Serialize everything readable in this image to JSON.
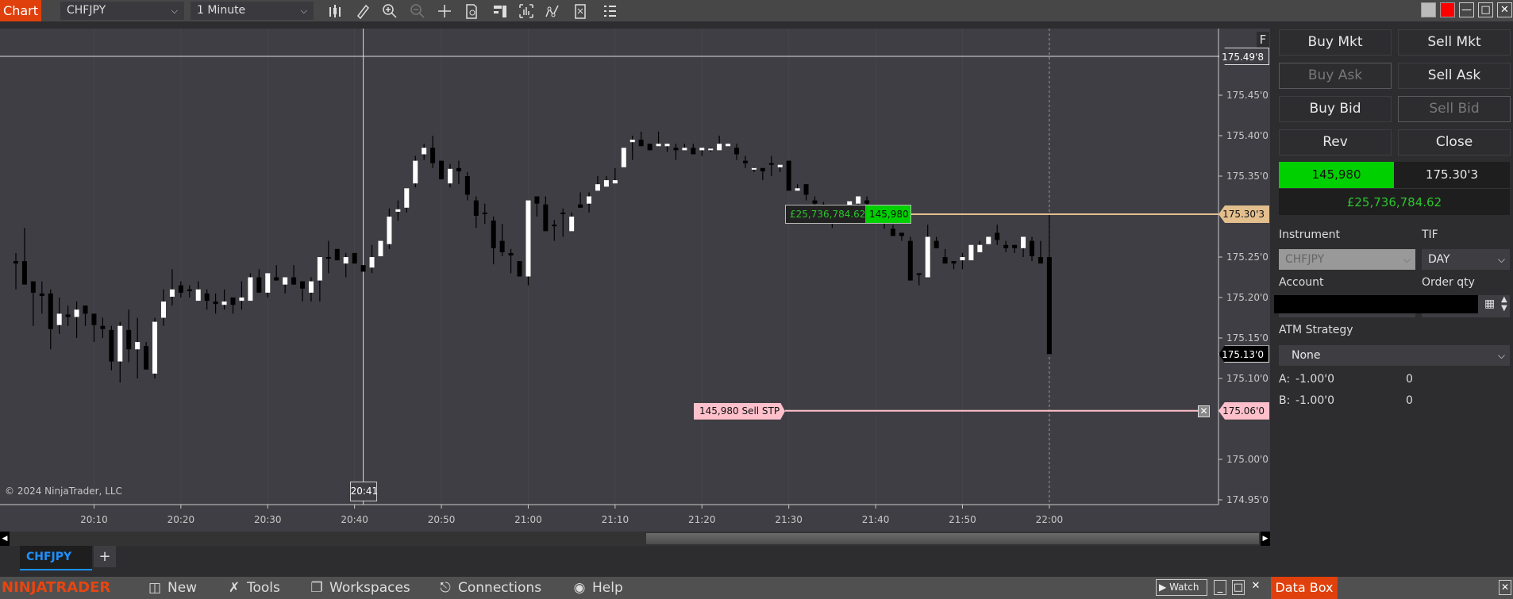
{
  "toolbar": {
    "tab_label": "Chart",
    "instrument": "CHFJPY",
    "interval": "1 Minute",
    "icons": [
      "bar-type-icon",
      "drawing-tool-icon",
      "zoom-in-icon",
      "zoom-out-icon",
      "crosshair-icon",
      "data-series-icon",
      "properties-icon",
      "chart-trader-icon",
      "indicators-icon",
      "strategies-icon",
      "list-icon"
    ],
    "window_buttons": [
      "gray-color-icon",
      "red-color-icon",
      "minimize-icon",
      "maximize-icon",
      "close-icon"
    ]
  },
  "chart": {
    "copyright": "© 2024 NinjaTrader, LLC",
    "f_label": "F",
    "crosshair_price": 175.498,
    "crosshair_price_label": "175.49'8",
    "crosshair_time_label": "20:41",
    "position_price": 175.303,
    "position_price_label": "175.30'3",
    "last_price": 175.13,
    "last_price_label": "175.13'0",
    "stop_price": 175.06,
    "stop_price_label": "175.06'0",
    "position_pnl": "£25,736,784.62",
    "position_qty": "145,980",
    "stop_order_label": "145,980  Sell STP",
    "stop_cancel": "✕",
    "colors": {
      "position_line": "#e3bf8e",
      "stop_line": "#ffc0cb",
      "last_flag": "#000000",
      "up_candle": "#ffffff",
      "down_candle": "#000000",
      "pnl_text": "#2ec42e",
      "qty_bg": "#00d000"
    }
  },
  "chart_data": {
    "type": "candlestick",
    "instrument": "CHFJPY",
    "interval": "1 Minute",
    "x_ticks": [
      "20:10",
      "20:20",
      "20:30",
      "20:40",
      "20:50",
      "21:00",
      "21:10",
      "21:20",
      "21:30",
      "21:40",
      "21:50",
      "22:00"
    ],
    "y_ticks": [
      {
        "value": 175.45,
        "label": "175.45'0"
      },
      {
        "value": 175.4,
        "label": "175.40'0"
      },
      {
        "value": 175.35,
        "label": "175.35'0"
      },
      {
        "value": 175.25,
        "label": "175.25'0"
      },
      {
        "value": 175.2,
        "label": "175.20'0"
      },
      {
        "value": 175.15,
        "label": "175.15'0"
      },
      {
        "value": 175.1,
        "label": "175.10'0"
      },
      {
        "value": 175.0,
        "label": "175.00'0"
      },
      {
        "value": 174.95,
        "label": "174.95'0"
      }
    ],
    "ylim": [
      174.94,
      175.52
    ],
    "first_bar_time": "20:01",
    "last_bar_time": "22:00",
    "ohlc_columns": [
      "open",
      "high",
      "low",
      "close"
    ],
    "candles": [
      [
        175.245,
        175.255,
        175.21,
        175.242
      ],
      [
        175.245,
        175.286,
        175.216,
        175.216
      ],
      [
        175.22,
        175.22,
        175.165,
        175.206
      ],
      [
        175.205,
        175.22,
        175.18,
        175.202
      ],
      [
        175.205,
        175.21,
        175.136,
        175.161
      ],
      [
        175.166,
        175.2,
        175.155,
        175.18
      ],
      [
        175.179,
        175.19,
        175.165,
        175.176
      ],
      [
        175.176,
        175.195,
        175.15,
        175.185
      ],
      [
        175.19,
        175.19,
        175.165,
        175.18
      ],
      [
        175.18,
        175.18,
        175.145,
        175.166
      ],
      [
        175.165,
        175.175,
        175.15,
        175.161
      ],
      [
        175.16,
        175.165,
        175.11,
        175.121
      ],
      [
        175.121,
        175.17,
        175.095,
        175.165
      ],
      [
        175.16,
        175.185,
        175.12,
        175.136
      ],
      [
        175.136,
        175.175,
        175.1,
        175.145
      ],
      [
        175.14,
        175.145,
        175.111,
        175.111
      ],
      [
        175.106,
        175.175,
        175.1,
        175.17
      ],
      [
        175.175,
        175.21,
        175.165,
        175.195
      ],
      [
        175.201,
        175.235,
        175.19,
        175.21
      ],
      [
        175.215,
        175.22,
        175.2,
        175.206
      ],
      [
        175.21,
        175.215,
        175.2,
        175.209
      ],
      [
        175.196,
        175.22,
        175.196,
        175.21
      ],
      [
        175.205,
        175.21,
        175.185,
        175.196
      ],
      [
        175.195,
        175.205,
        175.18,
        175.192
      ],
      [
        175.191,
        175.21,
        175.185,
        175.195
      ],
      [
        175.2,
        175.2,
        175.18,
        175.191
      ],
      [
        175.196,
        175.22,
        175.185,
        175.2
      ],
      [
        175.196,
        175.23,
        175.196,
        175.225
      ],
      [
        175.225,
        175.235,
        175.206,
        175.206
      ],
      [
        175.206,
        175.23,
        175.2,
        175.23
      ],
      [
        175.225,
        175.24,
        175.221,
        175.221
      ],
      [
        175.216,
        175.225,
        175.205,
        175.225
      ],
      [
        175.225,
        175.24,
        175.216,
        175.216
      ],
      [
        175.22,
        175.22,
        175.195,
        175.211
      ],
      [
        175.206,
        175.225,
        175.195,
        175.22
      ],
      [
        175.221,
        175.25,
        175.195,
        175.25
      ],
      [
        175.25,
        175.27,
        175.23,
        175.249
      ],
      [
        175.26,
        175.26,
        175.246,
        175.246
      ],
      [
        175.242,
        175.255,
        175.225,
        175.25
      ],
      [
        175.255,
        175.255,
        175.242,
        175.242
      ],
      [
        175.24,
        175.24,
        175.232,
        175.232
      ],
      [
        175.237,
        175.265,
        175.23,
        175.25
      ],
      [
        175.251,
        175.27,
        175.251,
        175.27
      ],
      [
        175.266,
        175.31,
        175.26,
        175.3
      ],
      [
        175.306,
        175.32,
        175.295,
        175.309
      ],
      [
        175.311,
        175.335,
        175.305,
        175.335
      ],
      [
        175.341,
        175.375,
        175.336,
        175.369
      ],
      [
        175.377,
        175.39,
        175.37,
        175.385
      ],
      [
        175.385,
        175.4,
        175.36,
        175.366
      ],
      [
        175.369,
        175.369,
        175.346,
        175.346
      ],
      [
        175.341,
        175.365,
        175.336,
        175.359
      ],
      [
        175.36,
        175.369,
        175.34,
        175.356
      ],
      [
        175.35,
        175.355,
        175.32,
        175.327
      ],
      [
        175.32,
        175.325,
        175.286,
        175.301
      ],
      [
        175.305,
        175.316,
        175.291,
        175.304
      ],
      [
        175.295,
        175.3,
        175.241,
        175.261
      ],
      [
        175.27,
        175.291,
        175.251,
        175.256
      ],
      [
        175.255,
        175.26,
        175.23,
        175.252
      ],
      [
        175.245,
        175.245,
        175.226,
        175.226
      ],
      [
        175.226,
        175.32,
        175.215,
        175.32
      ],
      [
        175.325,
        175.325,
        175.3,
        175.316
      ],
      [
        175.315,
        175.325,
        175.282,
        175.282
      ],
      [
        175.29,
        175.296,
        175.27,
        175.289
      ],
      [
        175.305,
        175.31,
        175.275,
        175.304
      ],
      [
        175.282,
        175.305,
        175.282,
        175.3
      ],
      [
        175.315,
        175.33,
        175.311,
        175.311
      ],
      [
        175.316,
        175.33,
        175.305,
        175.325
      ],
      [
        175.332,
        175.35,
        175.332,
        175.34
      ],
      [
        175.337,
        175.35,
        175.337,
        175.345
      ],
      [
        175.341,
        175.36,
        175.341,
        175.345
      ],
      [
        175.361,
        175.385,
        175.361,
        175.385
      ],
      [
        175.392,
        175.4,
        175.37,
        175.395
      ],
      [
        175.395,
        175.405,
        175.387,
        175.387
      ],
      [
        175.39,
        175.39,
        175.382,
        175.382
      ],
      [
        175.387,
        175.405,
        175.387,
        175.39
      ],
      [
        175.387,
        175.39,
        175.38,
        175.39
      ],
      [
        175.385,
        175.39,
        175.37,
        175.382
      ],
      [
        175.382,
        175.39,
        175.382,
        175.385
      ],
      [
        175.385,
        175.39,
        175.377,
        175.377
      ],
      [
        175.382,
        175.385,
        175.375,
        175.385
      ],
      [
        175.384,
        175.385,
        175.38,
        175.384
      ],
      [
        175.382,
        175.4,
        175.382,
        175.39
      ],
      [
        175.387,
        175.39,
        175.387,
        175.39
      ],
      [
        175.385,
        175.39,
        175.37,
        175.377
      ],
      [
        175.369,
        175.375,
        175.36,
        175.366
      ],
      [
        175.36,
        175.361,
        175.355,
        175.36
      ],
      [
        175.36,
        175.36,
        175.345,
        175.356
      ],
      [
        175.366,
        175.375,
        175.35,
        175.365
      ],
      [
        175.361,
        175.364,
        175.355,
        175.364
      ],
      [
        175.369,
        175.369,
        175.332,
        175.332
      ],
      [
        175.332,
        175.34,
        175.332,
        175.335
      ],
      [
        175.34,
        175.34,
        175.32,
        175.327
      ],
      [
        175.32,
        175.325,
        175.311,
        175.316
      ],
      [
        175.315,
        175.318,
        175.3,
        175.31
      ],
      [
        175.308,
        175.31,
        175.286,
        175.3
      ],
      [
        175.3,
        175.31,
        175.295,
        175.305
      ],
      [
        175.314,
        175.32,
        175.3,
        175.319
      ],
      [
        175.316,
        175.325,
        175.305,
        175.325
      ],
      [
        175.32,
        175.325,
        175.305,
        175.316
      ],
      [
        175.305,
        175.31,
        175.295,
        175.3
      ],
      [
        175.298,
        175.3,
        175.285,
        175.295
      ],
      [
        175.285,
        175.29,
        175.276,
        175.276
      ],
      [
        175.28,
        175.28,
        175.27,
        175.276
      ],
      [
        175.27,
        175.275,
        175.221,
        175.221
      ],
      [
        175.23,
        175.23,
        175.215,
        175.229
      ],
      [
        175.225,
        175.29,
        175.225,
        175.275
      ],
      [
        175.27,
        175.275,
        175.261,
        175.261
      ],
      [
        175.25,
        175.26,
        175.242,
        175.242
      ],
      [
        175.245,
        175.245,
        175.235,
        175.242
      ],
      [
        175.246,
        175.255,
        175.235,
        175.25
      ],
      [
        175.246,
        175.265,
        175.246,
        175.265
      ],
      [
        175.256,
        175.27,
        175.256,
        175.265
      ],
      [
        175.266,
        175.275,
        175.266,
        175.275
      ],
      [
        175.28,
        175.29,
        175.265,
        175.271
      ],
      [
        175.265,
        175.27,
        175.256,
        175.261
      ],
      [
        175.265,
        175.265,
        175.255,
        175.261
      ],
      [
        175.261,
        175.275,
        175.25,
        175.275
      ],
      [
        175.27,
        175.275,
        175.245,
        175.251
      ],
      [
        175.25,
        175.27,
        175.242,
        175.242
      ],
      [
        175.25,
        175.303,
        175.13,
        175.13
      ]
    ]
  },
  "scrollbar": {
    "left_arrow": "◀",
    "right_arrow": "▶"
  },
  "tabs": [
    {
      "label": "CHFJPY",
      "active": true
    }
  ],
  "tab_add": "+",
  "panel": {
    "buttons": [
      {
        "label": "Buy Mkt",
        "enabled": true
      },
      {
        "label": "Sell Mkt",
        "enabled": true
      },
      {
        "label": "Buy Ask",
        "enabled": false
      },
      {
        "label": "Sell Ask",
        "enabled": true
      },
      {
        "label": "Buy Bid",
        "enabled": true
      },
      {
        "label": "Sell Bid",
        "enabled": false
      },
      {
        "label": "Rev",
        "enabled": true
      },
      {
        "label": "Close",
        "enabled": true
      }
    ],
    "position_qty": "145,980",
    "avg_price": "175.30'3",
    "pnl": "£25,736,784.62",
    "instrument_label": "Instrument",
    "instrument_value": "CHFJPY",
    "tif_label": "TIF",
    "tif_value": "DAY",
    "account_label": "Account",
    "order_qty_label": "Order qty",
    "atm_label": "ATM Strategy",
    "atm_value": "None",
    "row_a": {
      "label": "A:",
      "price": "-1.00'0",
      "qty": "0"
    },
    "row_b": {
      "label": "B:",
      "price": "-1.00'0",
      "qty": "0"
    }
  },
  "bottom": {
    "logo": "NINJATRADER",
    "menu": [
      {
        "label": "New",
        "icon": "new-window-icon"
      },
      {
        "label": "Tools",
        "icon": "tools-icon"
      },
      {
        "label": "Workspaces",
        "icon": "workspaces-icon"
      },
      {
        "label": "Connections",
        "icon": "connections-plug-icon"
      },
      {
        "label": "Help",
        "icon": "help-icon"
      }
    ],
    "watch_label": "Watch",
    "data_box_label": "Data Box"
  }
}
